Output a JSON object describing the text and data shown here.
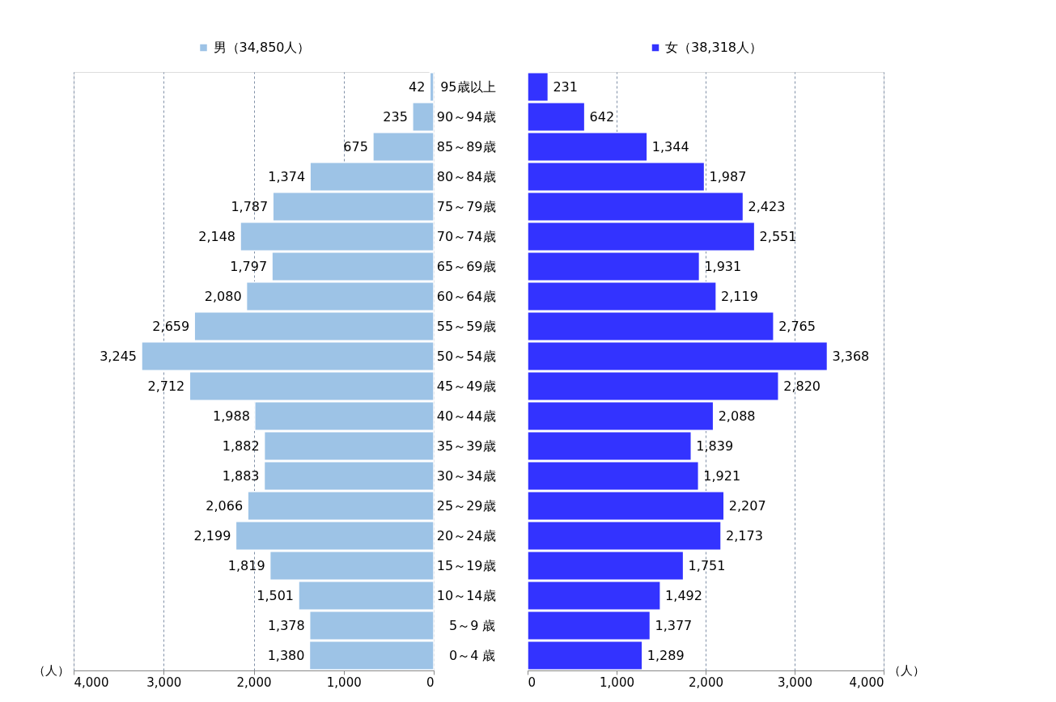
{
  "chart_data": [
    {
      "type": "bar",
      "orientation": "horizontal",
      "categories": [
        null,
        null,
        null,
        null,
        null,
        null,
        null,
        null,
        null,
        null,
        null,
        null,
        null,
        null,
        null,
        null,
        null,
        null,
        null,
        null
      ],
      "series": [
        {
          "name": "男（34,850人）",
          "color": "#9dc3e6",
          "values": [
            42,
            235,
            675,
            1374,
            1787,
            2148,
            1797,
            2080,
            2659,
            3245,
            2712,
            1988,
            1882,
            1883,
            2066,
            2199,
            1819,
            1501,
            1378,
            1380
          ],
          "value_labels": [
            "42",
            "235",
            "675",
            "1,374",
            "1,787",
            "2,148",
            "1,797",
            "2,080",
            "2,659",
            "3,245",
            "2,712",
            "1,988",
            "1,882",
            "1,883",
            "2,066",
            "2,199",
            "1,819",
            "1,501",
            "1,378",
            "1,380"
          ]
        }
      ],
      "xlim": [
        4000,
        0
      ],
      "xticks": [
        {
          "value": 4000,
          "label": "4,000"
        },
        {
          "value": 3000,
          "label": "3,000"
        },
        {
          "value": 2000,
          "label": "2,000"
        },
        {
          "value": 1000,
          "label": "1,000"
        },
        0
      ],
      "xlabel": "（人）",
      "tick_labels": "x",
      "grid": "x",
      "legend": "top"
    },
    {
      "type": "bar",
      "orientation": "horizontal",
      "categories": [
        "95歳以上",
        "90～94歳",
        "85～89歳",
        "80～84歳",
        "75～79歳",
        "70～74歳",
        "65～69歳",
        "60～64歳",
        "55～59歳",
        "50～54歳",
        "45～49歳",
        "40～44歳",
        "35～39歳",
        "30～34歳",
        "25～29歳",
        "20～24歳",
        "15～19歳",
        "10～14歳",
        "5～9 歳",
        "0～4 歳"
      ],
      "series": [
        {
          "name": "女（38,318人）",
          "color": "#3333ff",
          "values": [
            231,
            642,
            1344,
            1987,
            2423,
            2551,
            1931,
            2119,
            2765,
            3368,
            2820,
            2088,
            1839,
            1921,
            2207,
            2173,
            1751,
            1492,
            1377,
            1289
          ],
          "value_labels": [
            "231",
            "642",
            "1,344",
            "1,987",
            "2,423",
            "2,551",
            "1,931",
            "2,119",
            "2,765",
            "3,368",
            "2,820",
            "2,088",
            "1,839",
            "1,921",
            "2,207",
            "2,173",
            "1,751",
            "1,492",
            "1,377",
            "1,289"
          ]
        }
      ],
      "xlim": [
        0,
        4000
      ],
      "xticks": [
        0,
        {
          "value": 1000,
          "label": "1,000"
        },
        {
          "value": 2000,
          "label": "2,000"
        },
        {
          "value": 3000,
          "label": "3,000"
        },
        {
          "value": 4000,
          "label": "4,000"
        }
      ],
      "xlabel": "（人）",
      "grid": "x",
      "legend": "top"
    }
  ]
}
